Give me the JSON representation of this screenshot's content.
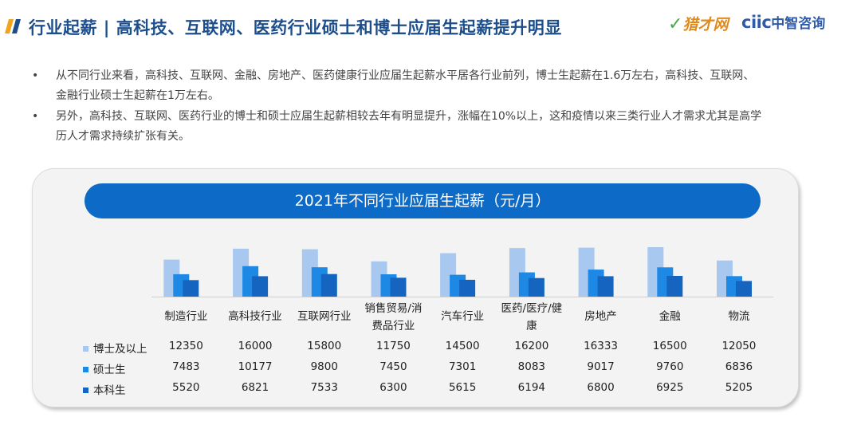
{
  "header": {
    "title": "行业起薪 | 高科技、互联网、医药行业硕士和博士应届生起薪提升明显",
    "logo_brand": "猎才网",
    "logo_partner_latin": "ciic",
    "logo_partner_cn": "中智咨询"
  },
  "bullets": [
    "从不同行业来看，高科技、互联网、金融、房地产、医药健康行业应届生起薪水平居各行业前列，博士生起薪在1.6万左右，高科技、互联网、金融行业硕士生起薪在1万左右。",
    "另外，高科技、互联网、医药行业的博士和硕士应届生起薪相较去年有明显提升，涨幅在10%以上，这和疫情以来三类行业人才需求尤其是高学历人才需求持续扩张有关。"
  ],
  "colors": {
    "title": "#1c4e8c",
    "banner": "#0d6bc7",
    "series_phd": "#a8c8f0",
    "series_master": "#1e88e5",
    "series_bachelor": "#1565c0"
  },
  "chart_data": {
    "type": "bar",
    "title": "2021年不同行业应届生起薪（元/月）",
    "categories": [
      "制造行业",
      "高科技行业",
      "互联网行业",
      "销售贸易/消费品行业",
      "汽车行业",
      "医药/医疗/健康",
      "房地产",
      "金融",
      "物流"
    ],
    "category_lines": [
      [
        "制造行业"
      ],
      [
        "高科技行业"
      ],
      [
        "互联网行业"
      ],
      [
        "销售贸易/消",
        "费品行业"
      ],
      [
        "汽车行业"
      ],
      [
        "医药/医疗/健",
        "康"
      ],
      [
        "房地产"
      ],
      [
        "金融"
      ],
      [
        "物流"
      ]
    ],
    "series": [
      {
        "name": "博士及以上",
        "values": [
          12350,
          16000,
          15800,
          11750,
          14500,
          16200,
          16333,
          16500,
          12050
        ]
      },
      {
        "name": "硕士生",
        "values": [
          7483,
          10177,
          9800,
          7450,
          7301,
          8083,
          9017,
          9760,
          6836
        ]
      },
      {
        "name": "本科生",
        "values": [
          5520,
          6821,
          7533,
          6300,
          5615,
          6194,
          6800,
          6925,
          5205
        ]
      }
    ],
    "xlabel": "",
    "ylabel": "",
    "grid": false,
    "legend": "table-left"
  }
}
